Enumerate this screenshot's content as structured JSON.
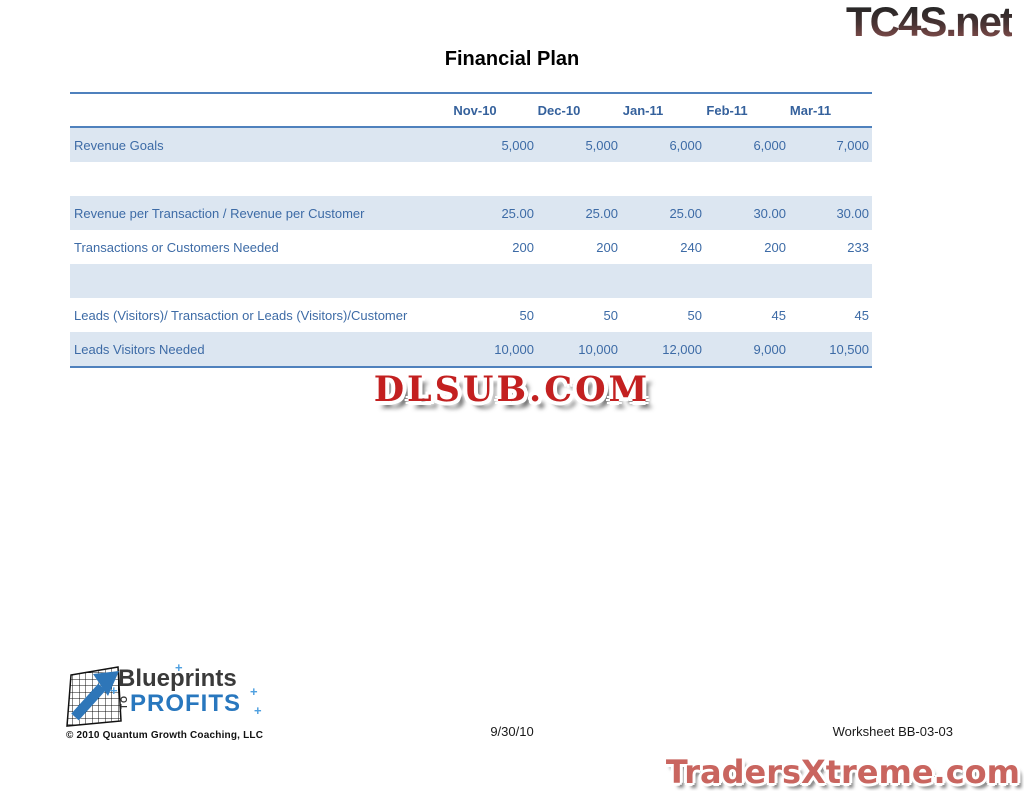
{
  "watermarks": {
    "top_right": "TC4S.net",
    "center": "DLSUB.COM",
    "bottom_right": "TradersXtreme.com"
  },
  "title": "Financial Plan",
  "table": {
    "columns": [
      "Nov-10",
      "Dec-10",
      "Jan-11",
      "Feb-11",
      "Mar-11"
    ],
    "rows": [
      {
        "label": "Revenue Goals",
        "values": [
          "5,000",
          "5,000",
          "6,000",
          "6,000",
          "7,000"
        ],
        "shaded": true
      },
      {
        "label": "",
        "values": [
          "",
          "",
          "",
          "",
          ""
        ],
        "shaded": false
      },
      {
        "label": "Revenue per Transaction / Revenue per Customer",
        "values": [
          "25.00",
          "25.00",
          "25.00",
          "30.00",
          "30.00"
        ],
        "shaded": true
      },
      {
        "label": "Transactions or Customers Needed",
        "values": [
          "200",
          "200",
          "240",
          "200",
          "233"
        ],
        "shaded": false
      },
      {
        "label": "",
        "values": [
          "",
          "",
          "",
          "",
          ""
        ],
        "shaded": true
      },
      {
        "label": "Leads (Visitors)/ Transaction or Leads (Visitors)/Customer",
        "values": [
          "50",
          "50",
          "50",
          "45",
          "45"
        ],
        "shaded": false
      },
      {
        "label": "Leads Visitors Needed",
        "values": [
          "10,000",
          "10,000",
          "12,000",
          "9,000",
          "10,500"
        ],
        "shaded": true
      }
    ]
  },
  "logo": {
    "word1": "Blueprints",
    "word_vertical": "TO",
    "word2": "PROFITS",
    "copyright": "© 2010 Quantum Growth Coaching, LLC"
  },
  "icons": {
    "crosshair_glyph": "+"
  },
  "footer": {
    "date": "9/30/10",
    "worksheet": "Worksheet BB-03-03"
  },
  "colors": {
    "accent_blue": "#4F81BD",
    "text_blue": "#3D6BA6",
    "row_shade": "#DCE6F1",
    "dlsub_red": "#C32020",
    "traders_salmon": "#C9655F",
    "profits_blue": "#2877BE"
  }
}
